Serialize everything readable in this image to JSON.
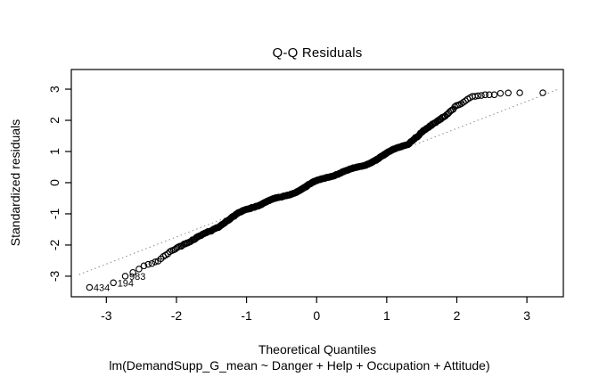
{
  "chart_data": {
    "type": "scatter",
    "subtype": "qq-normal-plot",
    "title": "Q-Q Residuals",
    "xlabel": "Theoretical Quantiles",
    "ylabel": "Standardized residuals",
    "subtitle": "lm(DemandSupp_G_mean ~ Danger + Help + Occupation + Attitude)",
    "x_ticks": [
      -3,
      -2,
      -1,
      0,
      1,
      2,
      3
    ],
    "y_ticks": [
      -3,
      -2,
      -1,
      0,
      1,
      2,
      3
    ],
    "xlim": [
      -3.5,
      3.52
    ],
    "ylim": [
      -3.66,
      3.63
    ],
    "grid": false,
    "legend": null,
    "n_points": 800,
    "point_style": {
      "shape": "open-circle",
      "radius_px": 3.2,
      "color": "#000000"
    },
    "reference_line": {
      "style": "dotted",
      "slope": 0.87,
      "intercept": 0.0,
      "color": "#8a8a8a"
    },
    "labeled_points": [
      {
        "label": "434",
        "x": -3.24,
        "y": -3.36
      },
      {
        "label": "194",
        "x": -2.9,
        "y": -3.21
      },
      {
        "label": "983",
        "x": -2.73,
        "y": -3.0
      }
    ],
    "curve_anchors": [
      [
        -3.24,
        -3.36
      ],
      [
        -2.9,
        -3.21
      ],
      [
        -2.73,
        -3.0
      ],
      [
        -2.6,
        -2.86
      ],
      [
        -2.48,
        -2.68
      ],
      [
        -2.38,
        -2.58
      ],
      [
        -2.25,
        -2.5
      ],
      [
        -2.12,
        -2.3
      ],
      [
        -2.0,
        -2.12
      ],
      [
        -1.88,
        -1.98
      ],
      [
        -1.75,
        -1.85
      ],
      [
        -1.6,
        -1.63
      ],
      [
        -1.45,
        -1.42
      ],
      [
        -1.3,
        -1.22
      ],
      [
        -1.1,
        -1.0
      ],
      [
        -0.9,
        -0.82
      ],
      [
        -0.7,
        -0.62
      ],
      [
        -0.5,
        -0.44
      ],
      [
        -0.3,
        -0.26
      ],
      [
        -0.1,
        -0.08
      ],
      [
        0.1,
        0.08
      ],
      [
        0.3,
        0.26
      ],
      [
        0.5,
        0.44
      ],
      [
        0.7,
        0.62
      ],
      [
        0.9,
        0.8
      ],
      [
        1.1,
        1.0
      ],
      [
        1.3,
        1.22
      ],
      [
        1.5,
        1.62
      ],
      [
        1.7,
        1.98
      ],
      [
        1.88,
        2.28
      ],
      [
        2.0,
        2.45
      ],
      [
        2.1,
        2.52
      ],
      [
        2.22,
        2.72
      ],
      [
        2.35,
        2.8
      ],
      [
        2.5,
        2.84
      ],
      [
        2.7,
        2.86
      ],
      [
        2.95,
        2.87
      ],
      [
        3.24,
        2.89
      ]
    ],
    "axis_color": "#000000",
    "text_color": "#000000"
  }
}
